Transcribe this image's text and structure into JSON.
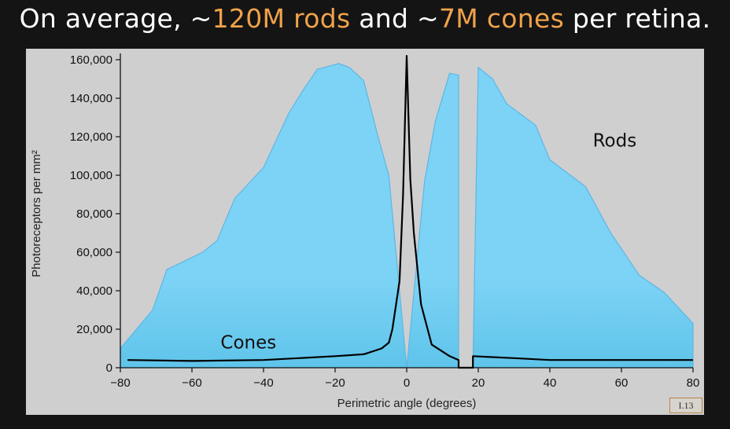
{
  "headline": {
    "part1": "On average, ~",
    "rods_count": "120M rods",
    "part2": " and ~",
    "cones_count": "7M cones",
    "part3": " per retina."
  },
  "slide_number": "I.13",
  "colors": {
    "rods_fill": "#7dd3f5",
    "rods_edge": "#5cb6e6",
    "cones_line": "#000000",
    "highlight": "#f0a24a"
  },
  "chart_data": {
    "type": "area",
    "title": "",
    "xlabel": "Perimetric angle (degrees)",
    "ylabel": "Photoreceptors per mm²",
    "xlim": [
      -80,
      80
    ],
    "ylim": [
      0,
      160000
    ],
    "x_ticks": [
      -80,
      -60,
      -40,
      -20,
      0,
      20,
      40,
      60,
      80
    ],
    "x_tick_labels": [
      "−80",
      "−60",
      "−40",
      "−20",
      "0",
      "20",
      "40",
      "60",
      "80"
    ],
    "y_ticks": [
      0,
      20000,
      40000,
      60000,
      80000,
      100000,
      120000,
      140000,
      160000
    ],
    "y_tick_labels": [
      "0",
      "20,000",
      "40,000",
      "60,000",
      "80,000",
      "100,000",
      "120,000",
      "140,000",
      "160,000"
    ],
    "grid": false,
    "legend": "none",
    "series": [
      {
        "name": "Rods",
        "segments": [
          [
            [
              -80,
              10000
            ],
            [
              -71,
              30000
            ],
            [
              -67,
              51000
            ],
            [
              -57,
              60000
            ],
            [
              -53,
              66000
            ],
            [
              -48,
              88000
            ],
            [
              -40,
              104000
            ],
            [
              -33,
              132000
            ],
            [
              -29,
              144000
            ],
            [
              -25,
              155000
            ],
            [
              -19,
              158000
            ],
            [
              -16,
              156000
            ],
            [
              -12,
              149000
            ],
            [
              -8,
              120000
            ],
            [
              -5,
              100000
            ],
            [
              0,
              0
            ],
            [
              5,
              97000
            ],
            [
              8,
              128000
            ],
            [
              12,
              153000
            ],
            [
              14.5,
              152000
            ]
          ],
          [
            [
              18.5,
              0
            ],
            [
              20,
              156000
            ],
            [
              24,
              150000
            ],
            [
              28,
              137000
            ],
            [
              36,
              126000
            ],
            [
              40,
              108000
            ],
            [
              50,
              94000
            ],
            [
              57,
              70000
            ],
            [
              65,
              48000
            ],
            [
              72,
              39000
            ],
            [
              80,
              23000
            ]
          ]
        ]
      },
      {
        "name": "Cones",
        "points": [
          [
            -78,
            4000
          ],
          [
            -60,
            3500
          ],
          [
            -40,
            4000
          ],
          [
            -20,
            6000
          ],
          [
            -12,
            7000
          ],
          [
            -7,
            10000
          ],
          [
            -5,
            13000
          ],
          [
            -4,
            20000
          ],
          [
            -2,
            45000
          ],
          [
            -1,
            90000
          ],
          [
            0,
            162000
          ],
          [
            1,
            98000
          ],
          [
            2,
            70000
          ],
          [
            4,
            33000
          ],
          [
            7,
            12000
          ],
          [
            12,
            6000
          ],
          [
            14.5,
            4000
          ],
          [
            14.5,
            0
          ],
          [
            18.5,
            0
          ],
          [
            18.5,
            6000
          ],
          [
            30,
            5000
          ],
          [
            40,
            4000
          ],
          [
            60,
            4000
          ],
          [
            80,
            4000
          ]
        ]
      }
    ],
    "annotations": [
      {
        "text": "Rods",
        "x": 52,
        "y": 115000
      },
      {
        "text": "Cones",
        "x": -52,
        "y": 10000
      }
    ]
  }
}
